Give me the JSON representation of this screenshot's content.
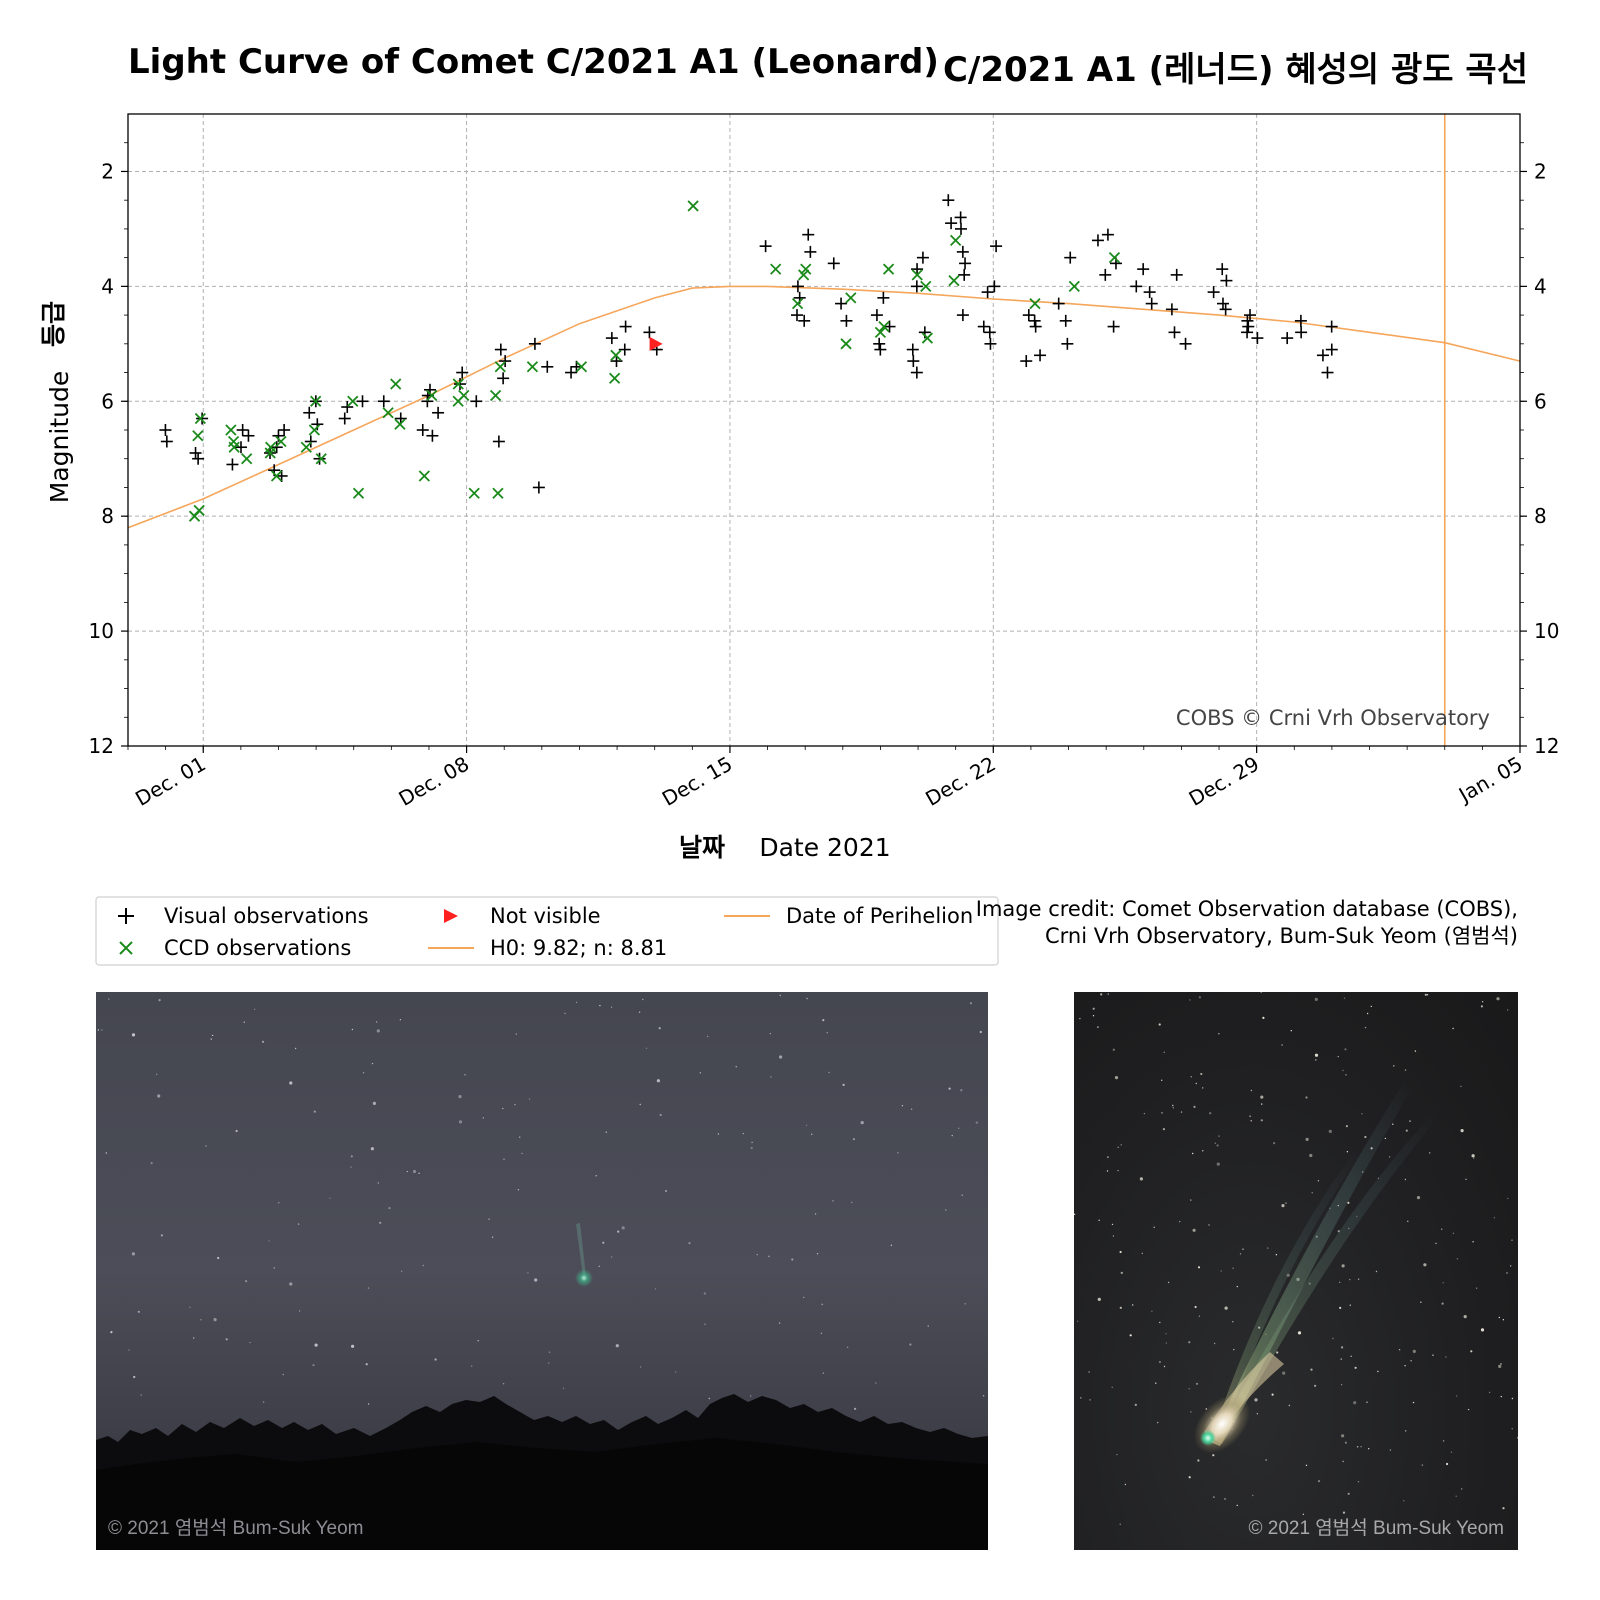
{
  "title_en": "Light Curve of Comet C/2021 A1 (Leonard)",
  "title_ko": "C/2021 A1 (레너드) 혜성의 광도 곡선",
  "credit": {
    "line1": "Image credit: Comet Observation database (COBS),",
    "line2": "Crni Vrh Observatory, Bum-Suk Yeom (염범석)"
  },
  "photos": {
    "left_alt": "Comet Leonard low above a tree line in a grey night sky",
    "right_alt": "Comet Leonard with a long greenish ion tail against a star field",
    "left_watermark": "© 2021 염범석 Bum-Suk Yeom",
    "right_watermark": "© 2021 염범석 Bum-Suk Yeom"
  },
  "colors": {
    "visual": "#000000",
    "ccd": "#1a8a1a",
    "not_visible": "#ff2020",
    "model": "#f5a65b",
    "perihelion": "#f5a65b",
    "grid": "#b0b0b0"
  },
  "chart_data": {
    "type": "scatter",
    "xlabel_ko": "날짜",
    "xlabel": "Date 2021",
    "ylabel_ko": "등급",
    "ylabel": "Magnitude",
    "xlim": [
      "2021-11-29",
      "2022-01-05"
    ],
    "ylim": [
      12,
      1
    ],
    "y_inverted": true,
    "x_ticks": [
      "Dec. 01",
      "Dec. 08",
      "Dec. 15",
      "Dec. 22",
      "Dec. 29",
      "Jan. 05"
    ],
    "x_tick_dates": [
      "2021-12-01",
      "2021-12-08",
      "2021-12-15",
      "2021-12-22",
      "2021-12-29",
      "2022-01-05"
    ],
    "y_ticks": [
      2,
      4,
      6,
      8,
      10,
      12
    ],
    "grid": true,
    "watermark": "COBS © Crni Vrh Observatory",
    "legend_position": "below",
    "legend": [
      {
        "label": "Visual observations",
        "marker": "plus"
      },
      {
        "label": "CCD observations",
        "marker": "x"
      },
      {
        "label": "Not visible",
        "marker": "triangle"
      },
      {
        "label": "H0: 9.82; n: 8.81",
        "marker": "line"
      },
      {
        "label": "Date of Perihelion",
        "marker": "line"
      }
    ],
    "perihelion_date": "2022-01-03",
    "model_curve": [
      [
        "2021-11-29",
        8.2
      ],
      [
        "2021-12-01",
        7.7
      ],
      [
        "2021-12-03",
        7.1
      ],
      [
        "2021-12-05",
        6.5
      ],
      [
        "2021-12-07",
        5.9
      ],
      [
        "2021-12-09",
        5.25
      ],
      [
        "2021-12-11",
        4.65
      ],
      [
        "2021-12-13",
        4.2
      ],
      [
        "2021-12-14",
        4.03
      ],
      [
        "2021-12-15",
        4.0
      ],
      [
        "2021-12-16",
        4.0
      ],
      [
        "2021-12-18",
        4.05
      ],
      [
        "2021-12-20",
        4.12
      ],
      [
        "2021-12-22",
        4.22
      ],
      [
        "2021-12-24",
        4.3
      ],
      [
        "2021-12-26",
        4.4
      ],
      [
        "2021-12-28",
        4.5
      ],
      [
        "2021-12-30",
        4.62
      ],
      [
        "2022-01-01",
        4.8
      ],
      [
        "2022-01-03",
        4.98
      ],
      [
        "2022-01-05",
        5.3
      ]
    ],
    "series": [
      {
        "name": "Visual observations",
        "points": [
          [
            "2021-11-30",
            6.5
          ],
          [
            "2021-11-30",
            6.7
          ],
          [
            "2021-12-01",
            6.9
          ],
          [
            "2021-12-01",
            7.0
          ],
          [
            "2021-12-01",
            6.3
          ],
          [
            "2021-12-02",
            6.8
          ],
          [
            "2021-12-02",
            7.1
          ],
          [
            "2021-12-02",
            6.6
          ],
          [
            "2021-12-02",
            6.5
          ],
          [
            "2021-12-03",
            6.8
          ],
          [
            "2021-12-03",
            7.2
          ],
          [
            "2021-12-03",
            6.5
          ],
          [
            "2021-12-03",
            7.3
          ],
          [
            "2021-12-03",
            6.9
          ],
          [
            "2021-12-03",
            6.6
          ],
          [
            "2021-12-04",
            6.7
          ],
          [
            "2021-12-04",
            7.0
          ],
          [
            "2021-12-04",
            6.2
          ],
          [
            "2021-12-04",
            6.4
          ],
          [
            "2021-12-04",
            6.0
          ],
          [
            "2021-12-05",
            6.1
          ],
          [
            "2021-12-05",
            6.3
          ],
          [
            "2021-12-05",
            6.0
          ],
          [
            "2021-12-06",
            6.3
          ],
          [
            "2021-12-06",
            6.0
          ],
          [
            "2021-12-07",
            5.9
          ],
          [
            "2021-12-07",
            6.2
          ],
          [
            "2021-12-07",
            6.5
          ],
          [
            "2021-12-07",
            6.0
          ],
          [
            "2021-12-07",
            5.8
          ],
          [
            "2021-12-07",
            6.6
          ],
          [
            "2021-12-08",
            5.5
          ],
          [
            "2021-12-08",
            5.7
          ],
          [
            "2021-12-08",
            6.0
          ],
          [
            "2021-12-09",
            5.6
          ],
          [
            "2021-12-09",
            6.7
          ],
          [
            "2021-12-09",
            5.3
          ],
          [
            "2021-12-09",
            5.1
          ],
          [
            "2021-12-10",
            5.0
          ],
          [
            "2021-12-10",
            5.4
          ],
          [
            "2021-12-10",
            7.5
          ],
          [
            "2021-12-11",
            5.4
          ],
          [
            "2021-12-11",
            5.5
          ],
          [
            "2021-12-12",
            4.7
          ],
          [
            "2021-12-12",
            4.9
          ],
          [
            "2021-12-12",
            5.1
          ],
          [
            "2021-12-12",
            5.3
          ],
          [
            "2021-12-13",
            4.8
          ],
          [
            "2021-12-13",
            5.1
          ],
          [
            "2021-12-16",
            3.3
          ],
          [
            "2021-12-17",
            3.4
          ],
          [
            "2021-12-17",
            3.1
          ],
          [
            "2021-12-17",
            4.0
          ],
          [
            "2021-12-17",
            4.2
          ],
          [
            "2021-12-17",
            4.6
          ],
          [
            "2021-12-17",
            4.5
          ],
          [
            "2021-12-18",
            3.6
          ],
          [
            "2021-12-18",
            4.3
          ],
          [
            "2021-12-18",
            4.6
          ],
          [
            "2021-12-19",
            4.2
          ],
          [
            "2021-12-19",
            4.7
          ],
          [
            "2021-12-19",
            4.5
          ],
          [
            "2021-12-19",
            5.0
          ],
          [
            "2021-12-19",
            5.1
          ],
          [
            "2021-12-20",
            4.0
          ],
          [
            "2021-12-20",
            4.8
          ],
          [
            "2021-12-20",
            3.7
          ],
          [
            "2021-12-20",
            5.5
          ],
          [
            "2021-12-20",
            5.3
          ],
          [
            "2021-12-20",
            5.1
          ],
          [
            "2021-12-20",
            3.5
          ],
          [
            "2021-12-21",
            2.5
          ],
          [
            "2021-12-21",
            2.9
          ],
          [
            "2021-12-21",
            3.0
          ],
          [
            "2021-12-21",
            3.4
          ],
          [
            "2021-12-21",
            3.6
          ],
          [
            "2021-12-21",
            3.8
          ],
          [
            "2021-12-21",
            4.5
          ],
          [
            "2021-12-21",
            2.8
          ],
          [
            "2021-12-22",
            3.3
          ],
          [
            "2021-12-22",
            4.0
          ],
          [
            "2021-12-22",
            4.7
          ],
          [
            "2021-12-22",
            4.8
          ],
          [
            "2021-12-22",
            5.0
          ],
          [
            "2021-12-22",
            4.1
          ],
          [
            "2021-12-23",
            4.5
          ],
          [
            "2021-12-23",
            4.6
          ],
          [
            "2021-12-23",
            4.7
          ],
          [
            "2021-12-23",
            5.3
          ],
          [
            "2021-12-23",
            5.2
          ],
          [
            "2021-12-24",
            4.3
          ],
          [
            "2021-12-24",
            4.6
          ],
          [
            "2021-12-24",
            3.5
          ],
          [
            "2021-12-24",
            5.0
          ],
          [
            "2021-12-25",
            3.2
          ],
          [
            "2021-12-25",
            3.6
          ],
          [
            "2021-12-25",
            3.8
          ],
          [
            "2021-12-25",
            4.7
          ],
          [
            "2021-12-25",
            3.1
          ],
          [
            "2021-12-26",
            3.7
          ],
          [
            "2021-12-26",
            4.0
          ],
          [
            "2021-12-26",
            4.1
          ],
          [
            "2021-12-26",
            4.3
          ],
          [
            "2021-12-27",
            3.8
          ],
          [
            "2021-12-27",
            4.4
          ],
          [
            "2021-12-27",
            4.8
          ],
          [
            "2021-12-27",
            5.0
          ],
          [
            "2021-12-28",
            4.3
          ],
          [
            "2021-12-28",
            3.7
          ],
          [
            "2021-12-28",
            3.9
          ],
          [
            "2021-12-28",
            4.1
          ],
          [
            "2021-12-28",
            4.4
          ],
          [
            "2021-12-29",
            4.5
          ],
          [
            "2021-12-29",
            4.6
          ],
          [
            "2021-12-29",
            4.7
          ],
          [
            "2021-12-29",
            4.8
          ],
          [
            "2021-12-29",
            4.9
          ],
          [
            "2021-12-30",
            4.6
          ],
          [
            "2021-12-30",
            4.8
          ],
          [
            "2021-12-30",
            4.9
          ],
          [
            "2021-12-31",
            5.1
          ],
          [
            "2021-12-31",
            5.2
          ],
          [
            "2021-12-31",
            5.5
          ],
          [
            "2021-12-31",
            4.7
          ]
        ]
      },
      {
        "name": "CCD observations",
        "points": [
          [
            "2021-12-01",
            8.0
          ],
          [
            "2021-12-01",
            6.3
          ],
          [
            "2021-12-01",
            6.6
          ],
          [
            "2021-12-01",
            7.9
          ],
          [
            "2021-12-02",
            7.0
          ],
          [
            "2021-12-02",
            6.7
          ],
          [
            "2021-12-02",
            6.8
          ],
          [
            "2021-12-02",
            6.5
          ],
          [
            "2021-12-03",
            6.7
          ],
          [
            "2021-12-03",
            6.9
          ],
          [
            "2021-12-03",
            7.3
          ],
          [
            "2021-12-03",
            6.8
          ],
          [
            "2021-12-04",
            6.0
          ],
          [
            "2021-12-04",
            6.5
          ],
          [
            "2021-12-04",
            6.8
          ],
          [
            "2021-12-04",
            7.0
          ],
          [
            "2021-12-05",
            6.0
          ],
          [
            "2021-12-05",
            7.6
          ],
          [
            "2021-12-06",
            6.2
          ],
          [
            "2021-12-06",
            6.4
          ],
          [
            "2021-12-06",
            5.7
          ],
          [
            "2021-12-07",
            5.9
          ],
          [
            "2021-12-07",
            7.3
          ],
          [
            "2021-12-08",
            5.9
          ],
          [
            "2021-12-08",
            6.0
          ],
          [
            "2021-12-08",
            7.6
          ],
          [
            "2021-12-08",
            5.7
          ],
          [
            "2021-12-09",
            5.9
          ],
          [
            "2021-12-09",
            7.6
          ],
          [
            "2021-12-09",
            5.4
          ],
          [
            "2021-12-10",
            5.4
          ],
          [
            "2021-12-11",
            5.4
          ],
          [
            "2021-12-12",
            5.2
          ],
          [
            "2021-12-12",
            5.6
          ],
          [
            "2021-12-14",
            2.6
          ],
          [
            "2021-12-16",
            3.7
          ],
          [
            "2021-12-17",
            3.7
          ],
          [
            "2021-12-17",
            3.8
          ],
          [
            "2021-12-17",
            4.3
          ],
          [
            "2021-12-18",
            4.2
          ],
          [
            "2021-12-18",
            5.0
          ],
          [
            "2021-12-19",
            4.8
          ],
          [
            "2021-12-19",
            3.7
          ],
          [
            "2021-12-19",
            4.7
          ],
          [
            "2021-12-20",
            3.8
          ],
          [
            "2021-12-20",
            4.9
          ],
          [
            "2021-12-20",
            4.0
          ],
          [
            "2021-12-21",
            3.9
          ],
          [
            "2021-12-21",
            3.2
          ],
          [
            "2021-12-23",
            4.3
          ],
          [
            "2021-12-24",
            4.0
          ],
          [
            "2021-12-25",
            3.5
          ]
        ]
      },
      {
        "name": "Not visible",
        "points": [
          [
            "2021-12-13",
            5.0
          ]
        ]
      }
    ]
  }
}
